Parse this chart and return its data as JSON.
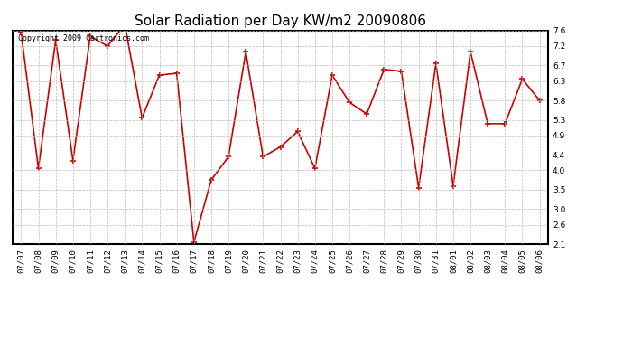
{
  "title": "Solar Radiation per Day KW/m2 20090806",
  "copyright_text": "Copyright 2009 Cartronics.com",
  "dates": [
    "07/07",
    "07/08",
    "07/09",
    "07/10",
    "07/11",
    "07/12",
    "07/13",
    "07/14",
    "07/15",
    "07/16",
    "07/17",
    "07/18",
    "07/19",
    "07/20",
    "07/21",
    "07/22",
    "07/23",
    "07/24",
    "07/25",
    "07/26",
    "07/27",
    "07/28",
    "07/29",
    "07/30",
    "07/31",
    "08/01",
    "08/02",
    "08/03",
    "08/04",
    "08/05",
    "08/06"
  ],
  "values": [
    7.55,
    4.05,
    7.35,
    4.25,
    7.45,
    7.2,
    7.75,
    5.35,
    6.45,
    6.5,
    2.15,
    3.75,
    4.35,
    7.05,
    4.35,
    4.6,
    5.0,
    4.05,
    6.45,
    5.75,
    5.45,
    6.6,
    6.55,
    3.55,
    6.75,
    3.6,
    7.05,
    5.2,
    5.2,
    6.35,
    5.8
  ],
  "line_color": "#cc0000",
  "marker": "+",
  "marker_size": 5,
  "marker_linewidth": 1.2,
  "line_width": 1.2,
  "background_color": "#ffffff",
  "plot_bg_color": "#ffffff",
  "grid_color": "#bbbbbb",
  "grid_linestyle": "--",
  "ylim": [
    2.1,
    7.6
  ],
  "yticks": [
    2.1,
    2.6,
    3.0,
    3.5,
    4.0,
    4.4,
    4.9,
    5.3,
    5.8,
    6.3,
    6.7,
    7.2,
    7.6
  ],
  "title_fontsize": 11,
  "tick_fontsize": 6.5,
  "copyright_fontsize": 6
}
